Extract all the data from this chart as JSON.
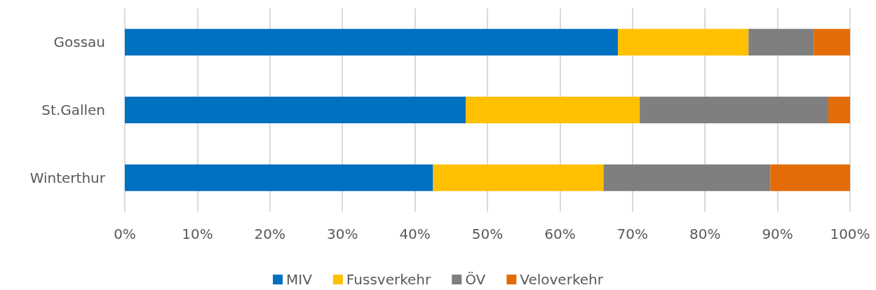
{
  "chart_data": {
    "type": "bar",
    "orientation": "horizontal",
    "stacked": true,
    "categories": [
      "Gossau",
      "St.Gallen",
      "Winterthur"
    ],
    "series": [
      {
        "name": "MIV",
        "color": "#0070c0",
        "values": [
          68,
          47,
          42.5
        ]
      },
      {
        "name": "Fussverkehr",
        "color": "#ffc000",
        "values": [
          18,
          24,
          23.5
        ]
      },
      {
        "name": "ÖV",
        "color": "#7f7f7f",
        "values": [
          9,
          26,
          23
        ]
      },
      {
        "name": "Veloverkehr",
        "color": "#e36c09",
        "values": [
          5,
          3,
          11
        ]
      }
    ],
    "xlim": [
      0,
      100
    ],
    "xticks": [
      {
        "value": 0,
        "label": "0%"
      },
      {
        "value": 10,
        "label": "10%"
      },
      {
        "value": 20,
        "label": "20%"
      },
      {
        "value": 30,
        "label": "30%"
      },
      {
        "value": 40,
        "label": "40%"
      },
      {
        "value": 50,
        "label": "50%"
      },
      {
        "value": 60,
        "label": "60%"
      },
      {
        "value": 70,
        "label": "70%"
      },
      {
        "value": 80,
        "label": "80%"
      },
      {
        "value": 90,
        "label": "90%"
      },
      {
        "value": 100,
        "label": "100%"
      }
    ],
    "grid": "x",
    "legend": "bottom"
  }
}
